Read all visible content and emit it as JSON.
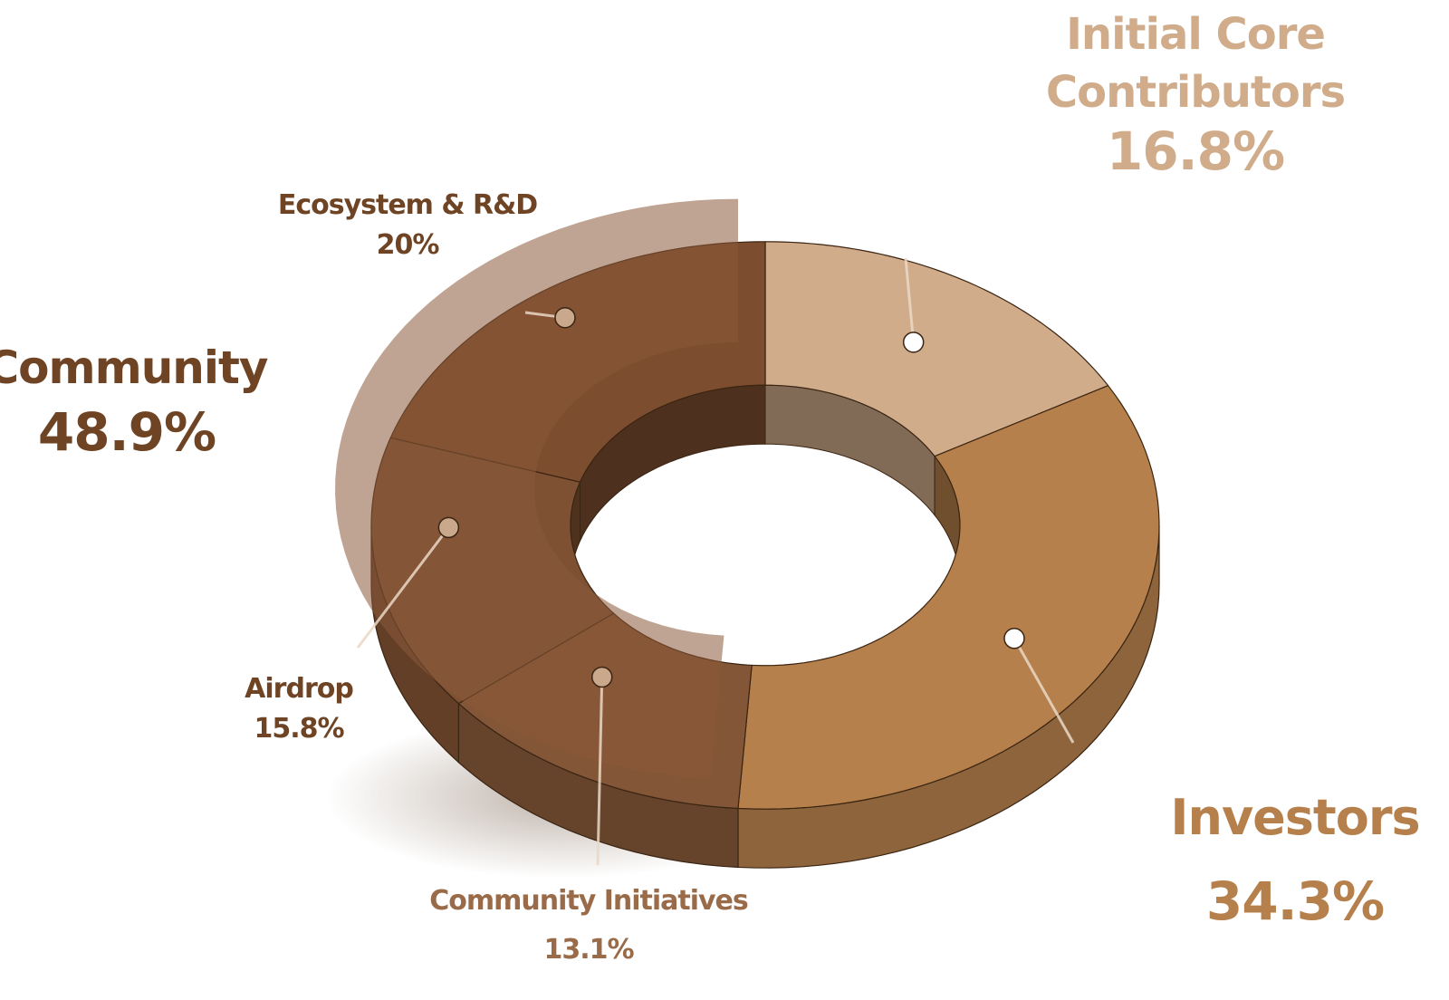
{
  "chart_data": {
    "type": "pie",
    "title": "",
    "slices": [
      {
        "label": "Initial Core Contributors",
        "value": 16.8,
        "color": "#d0ac8b"
      },
      {
        "label": "Investors",
        "value": 34.3,
        "color": "#b5804b"
      },
      {
        "label": "Community Initiatives",
        "value": 13.1,
        "color": "#835637"
      },
      {
        "label": "Airdrop",
        "value": 15.8,
        "color": "#7d5131"
      },
      {
        "label": "Ecosystem & R&D",
        "value": 20,
        "color": "#7c4d2e"
      }
    ],
    "group": {
      "label": "Community",
      "value": 48.9,
      "members": [
        "Community Initiatives",
        "Airdrop",
        "Ecosystem & R&D"
      ]
    },
    "display_pct": {
      "Initial Core Contributors": "16.8%",
      "Investors": "34.3%",
      "Community Initiatives": "13.1%",
      "Airdrop": "15.8%",
      "Ecosystem & R&D": "20%",
      "Community": "48.9%"
    }
  },
  "colors": {
    "core_label": "#d0ac8b",
    "investors_label": "#b5804b",
    "community_label": "#6e4424",
    "ecosystem_label": "#6e4424",
    "airdrop_label": "#6e4424",
    "initiatives_label": "#9a6b48"
  }
}
